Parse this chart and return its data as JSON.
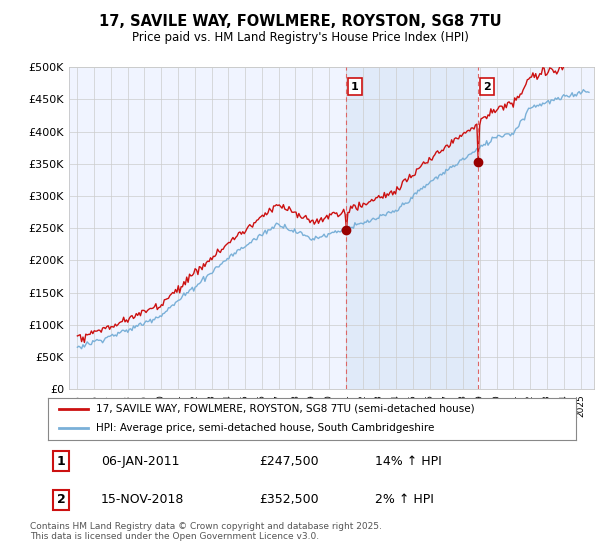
{
  "title_line1": "17, SAVILE WAY, FOWLMERE, ROYSTON, SG8 7TU",
  "title_line2": "Price paid vs. HM Land Registry's House Price Index (HPI)",
  "ylim": [
    0,
    500000
  ],
  "yticks": [
    0,
    50000,
    100000,
    150000,
    200000,
    250000,
    300000,
    350000,
    400000,
    450000,
    500000
  ],
  "ytick_labels": [
    "£0",
    "£50K",
    "£100K",
    "£150K",
    "£200K",
    "£250K",
    "£300K",
    "£350K",
    "£400K",
    "£450K",
    "£500K"
  ],
  "fig_bg_color": "#ffffff",
  "plot_bg_color": "#f0f4ff",
  "shade_color": "#dde8f8",
  "grid_color": "#cccccc",
  "sale1_date_x": 2011.02,
  "sale1_price": 247500,
  "sale1_label": "1",
  "sale1_date_str": "06-JAN-2011",
  "sale1_pct": "14% ↑ HPI",
  "sale2_date_x": 2018.88,
  "sale2_price": 352500,
  "sale2_label": "2",
  "sale2_date_str": "15-NOV-2018",
  "sale2_pct": "2% ↑ HPI",
  "legend_line1": "17, SAVILE WAY, FOWLMERE, ROYSTON, SG8 7TU (semi-detached house)",
  "legend_line2": "HPI: Average price, semi-detached house, South Cambridgeshire",
  "footer": "Contains HM Land Registry data © Crown copyright and database right 2025.\nThis data is licensed under the Open Government Licence v3.0.",
  "red_color": "#cc1111",
  "blue_color": "#7ab0d8",
  "vline_color": "#dd6666",
  "marker_color": "#990000",
  "xlim_left": 1994.5,
  "xlim_right": 2025.8
}
